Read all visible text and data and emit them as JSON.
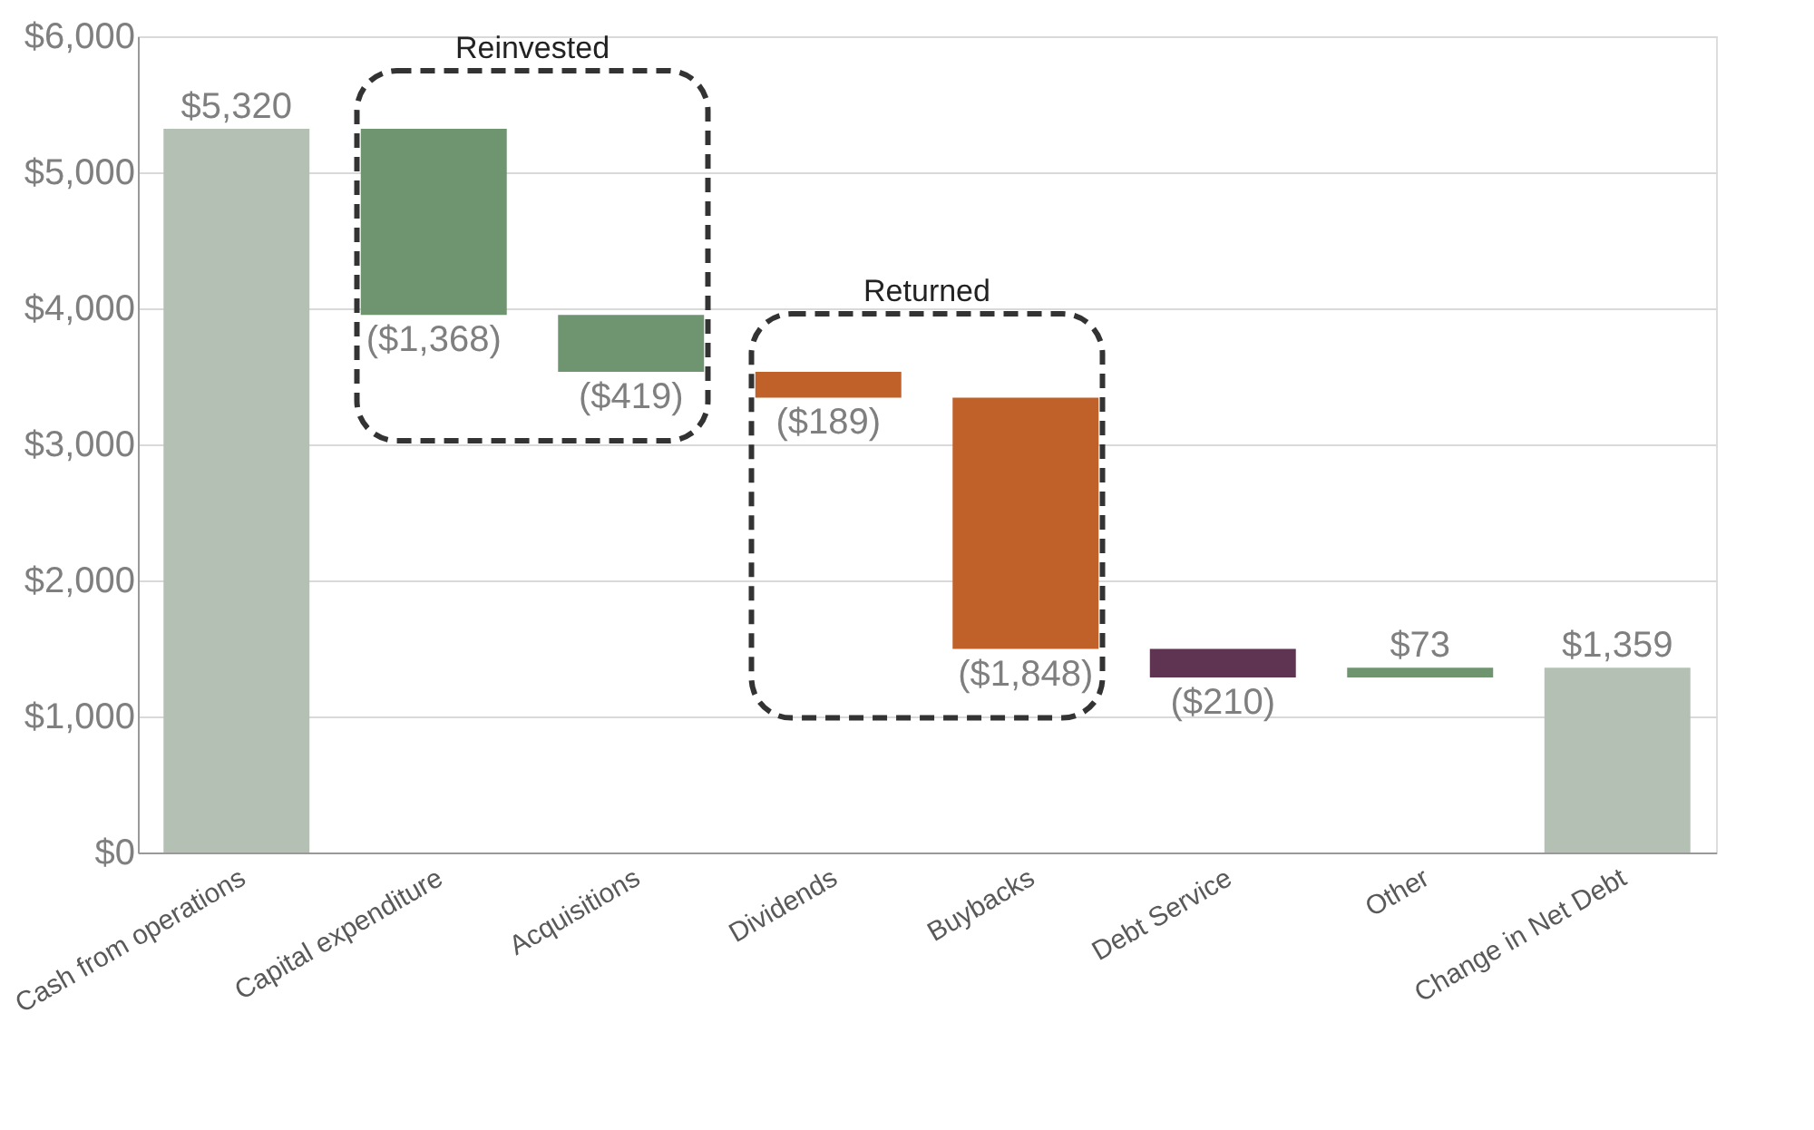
{
  "chart_data": {
    "type": "bar",
    "categories": [
      "Cash from operations",
      "Capital expenditure",
      "Acquisitions",
      "Dividends",
      "Buybacks",
      "Debt Service",
      "Other",
      "Change in Net Debt"
    ],
    "values": [
      5320,
      -1368,
      -419,
      -189,
      -1848,
      -210,
      73,
      1359
    ],
    "base": [
      0,
      5320,
      3952,
      3533,
      3344,
      1496,
      1286,
      0
    ],
    "colors": [
      "#b5c0b5",
      "#6e9470",
      "#6e9470",
      "#c0612a",
      "#c0612a",
      "#5e3452",
      "#6e9470",
      "#b5c0b5"
    ],
    "value_labels": [
      "$5,320",
      "($1,368)",
      "($419)",
      "($189)",
      "($1,848)",
      "($210)",
      "$73",
      "$1,359"
    ],
    "ylim": [
      0,
      6000
    ],
    "yticks": [
      {
        "value": 0,
        "label": "$0"
      },
      {
        "value": 1000,
        "label": "$1,000"
      },
      {
        "value": 2000,
        "label": "$2,000"
      },
      {
        "value": 3000,
        "label": "$3,000"
      },
      {
        "value": 4000,
        "label": "$4,000"
      },
      {
        "value": 5000,
        "label": "$5,000"
      },
      {
        "value": 6000,
        "label": "$6,000"
      }
    ],
    "grid": "y",
    "annotations": [
      "Reinvested",
      "Returned"
    ]
  }
}
